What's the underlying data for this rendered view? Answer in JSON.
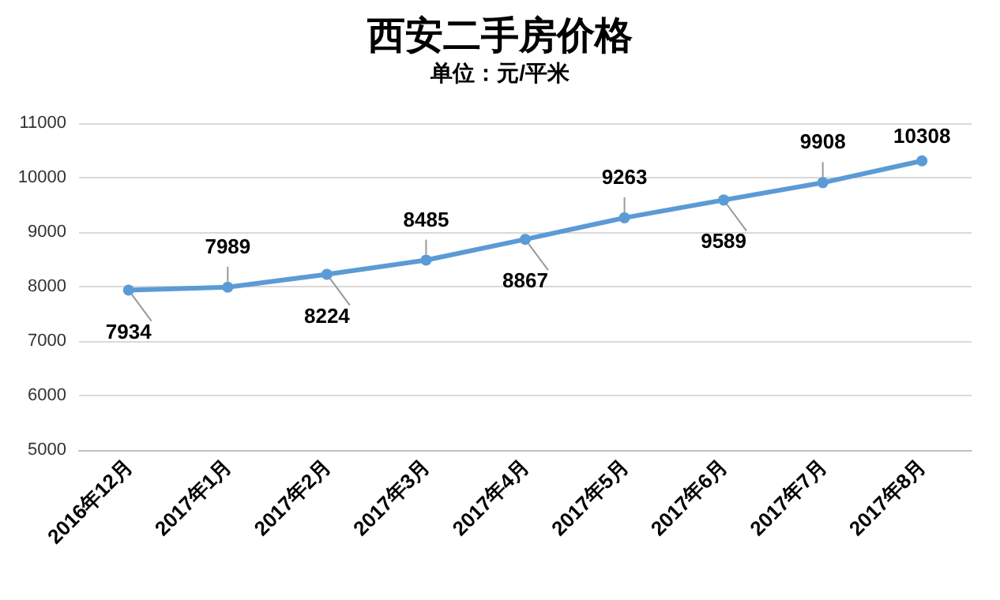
{
  "chart_data": {
    "type": "line",
    "title": "西安二手房价格",
    "subtitle": "单位：元/平米",
    "categories": [
      "2016年12月",
      "2017年1月",
      "2017年2月",
      "2017年3月",
      "2017年4月",
      "2017年5月",
      "2017年6月",
      "2017年7月",
      "2017年8月"
    ],
    "series": [
      {
        "color": "#5b9bd5",
        "values": [
          7934,
          7989,
          8224,
          8485,
          8867,
          9263,
          9589,
          9908,
          10308
        ]
      }
    ],
    "ylim": [
      5000,
      11000
    ],
    "yticks": [
      5000,
      6000,
      7000,
      8000,
      9000,
      10000,
      11000
    ],
    "grid": "y",
    "marker": "circle",
    "line_style": "solid",
    "data_labels": true
  }
}
